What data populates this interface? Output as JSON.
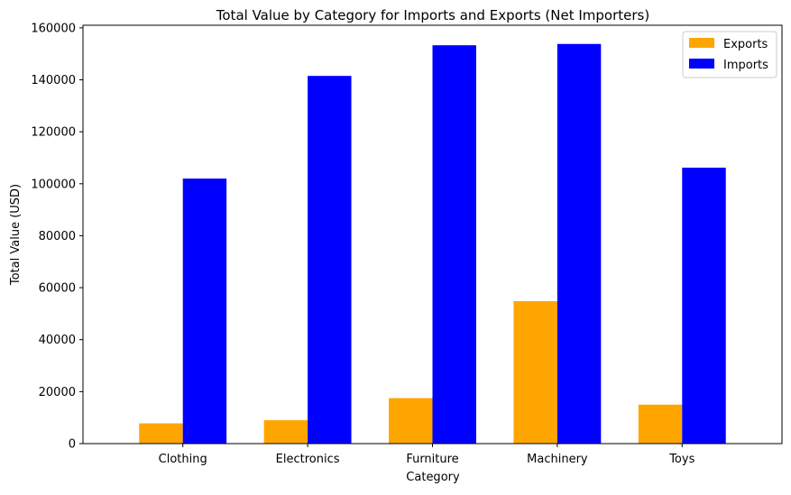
{
  "chart_data": {
    "type": "bar",
    "title": "Total Value by Category for Imports and Exports (Net Importers)",
    "xlabel": "Category",
    "ylabel": "Total Value (USD)",
    "categories": [
      "Clothing",
      "Electronics",
      "Furniture",
      "Machinery",
      "Toys"
    ],
    "series": [
      {
        "name": "Exports",
        "color": "#ffa500",
        "values": [
          7800,
          9000,
          17500,
          54800,
          15000
        ]
      },
      {
        "name": "Imports",
        "color": "#0000ff",
        "values": [
          102000,
          141500,
          153300,
          153800,
          106200
        ]
      }
    ],
    "ylim": [
      0,
      161000
    ],
    "yticks": [
      0,
      20000,
      40000,
      60000,
      80000,
      100000,
      120000,
      140000,
      160000
    ],
    "ytick_labels": [
      "0",
      "20000",
      "40000",
      "60000",
      "80000",
      "100000",
      "120000",
      "140000",
      "160000"
    ],
    "legend": {
      "position": "top-right",
      "entries": [
        "Exports",
        "Imports"
      ]
    },
    "grid": false
  }
}
